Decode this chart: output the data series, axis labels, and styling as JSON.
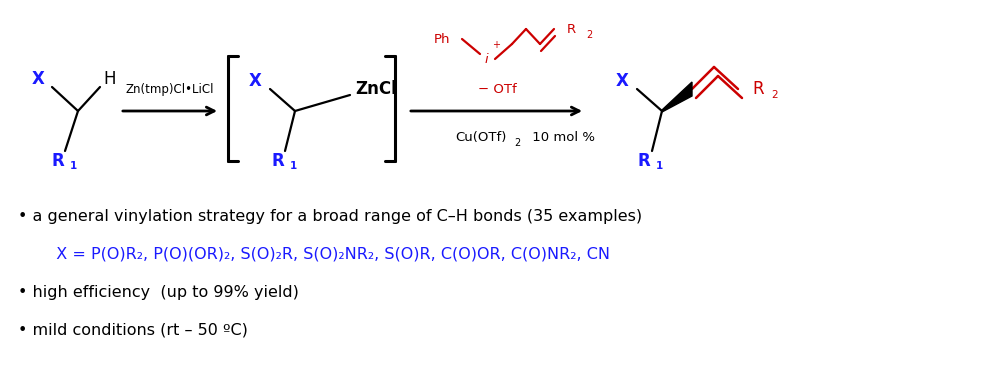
{
  "bg_color": "#ffffff",
  "blue": "#1a1aff",
  "red": "#cc0000",
  "black": "#000000",
  "fig_width": 10.0,
  "fig_height": 3.66,
  "dpi": 100,
  "bullet1": "a general vinylation strategy for a broad range of C–H bonds (35 examples)",
  "bullet2_blue": "  X = P(O)R₂, P(O)(OR)₂, S(O)₂R, S(O)₂NR₂, S(O)R, C(O)OR, C(O)NR₂, CN",
  "bullet3": "high efficiency  (up to 99% yield)",
  "bullet4": "mild conditions (rt – 50 ºC)",
  "xlim": [
    0,
    10
  ],
  "ylim": [
    0,
    3.66
  ]
}
